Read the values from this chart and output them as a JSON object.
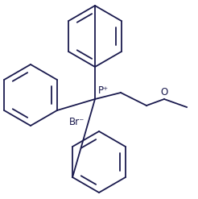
{
  "bg_color": "#ffffff",
  "line_color": "#1a1a4e",
  "line_width": 1.3,
  "font_size": 8.5,
  "P_label": "P⁺",
  "Br_label": "Br⁻",
  "O_label": "O"
}
